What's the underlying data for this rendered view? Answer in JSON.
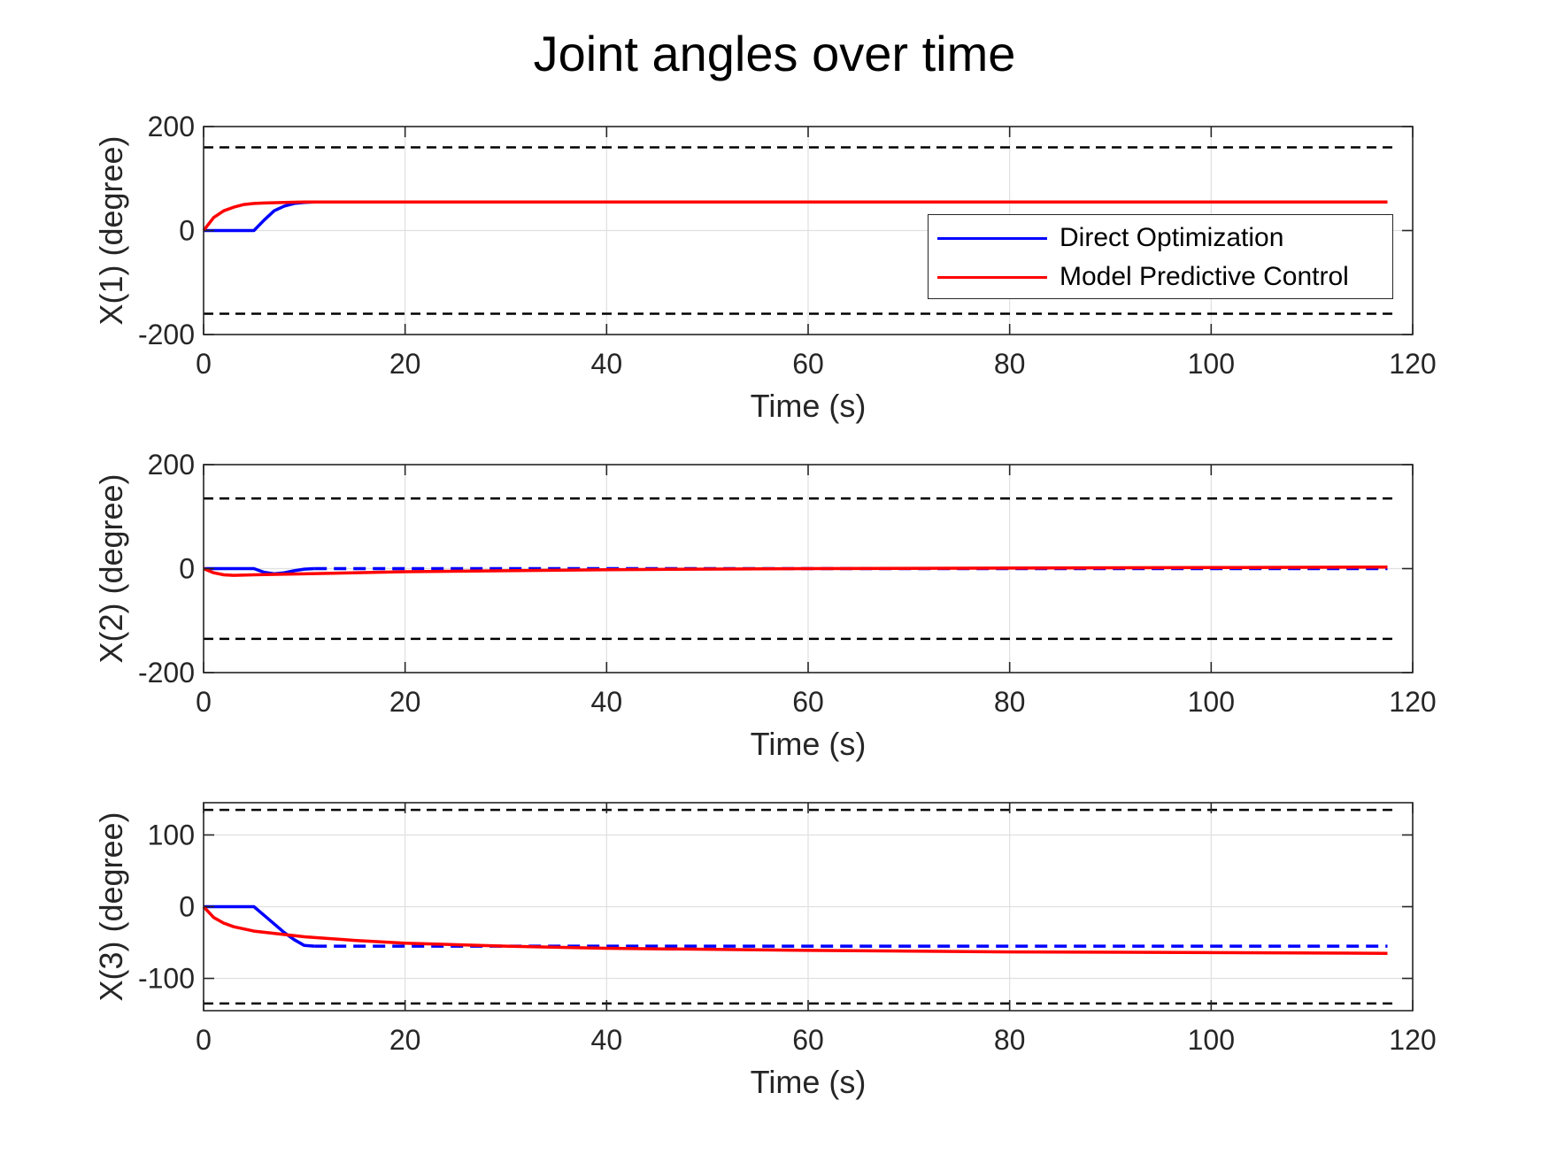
{
  "figure_title": "Joint angles over time",
  "colors": {
    "direct": "#0000ff",
    "mpc": "#ff0000",
    "bound": "#000000",
    "grid": "#e0e0e0",
    "axis": "#262626"
  },
  "legend": [
    {
      "label": "Direct Optimization",
      "color": "#0000ff"
    },
    {
      "label": "Model Predictive Control",
      "color": "#ff0000"
    }
  ],
  "chart_data": [
    {
      "type": "line",
      "title": "",
      "xlabel": "Time (s)",
      "ylabel": "X(1) (degree)",
      "xlim": [
        0,
        120
      ],
      "ylim": [
        -200,
        200
      ],
      "xticks": [
        0,
        20,
        40,
        60,
        80,
        100,
        120
      ],
      "yticks": [
        -200,
        0,
        200
      ],
      "grid": true,
      "legend_position": "center-right",
      "bounds": [
        160,
        -160
      ],
      "series": [
        {
          "name": "Direct Optimization",
          "solid": [
            [
              0,
              0
            ],
            [
              5,
              0
            ],
            [
              6,
              20
            ],
            [
              7,
              38
            ],
            [
              8,
              47
            ],
            [
              9,
              52
            ],
            [
              10,
              54
            ],
            [
              11,
              55
            ]
          ],
          "dashed": []
        },
        {
          "name": "Model Predictive Control",
          "solid": [
            [
              0,
              0
            ],
            [
              1,
              25
            ],
            [
              2,
              38
            ],
            [
              3,
              45
            ],
            [
              4,
              50
            ],
            [
              5,
              52
            ],
            [
              6,
              53
            ],
            [
              8,
              54
            ],
            [
              10,
              55
            ],
            [
              117.5,
              55
            ]
          ]
        }
      ]
    },
    {
      "type": "line",
      "title": "",
      "xlabel": "Time (s)",
      "ylabel": "X(2) (degree)",
      "xlim": [
        0,
        120
      ],
      "ylim": [
        -200,
        200
      ],
      "xticks": [
        0,
        20,
        40,
        60,
        80,
        100,
        120
      ],
      "yticks": [
        -200,
        0,
        200
      ],
      "grid": true,
      "bounds": [
        135,
        -135
      ],
      "series": [
        {
          "name": "Direct Optimization",
          "solid": [
            [
              0,
              0
            ],
            [
              5,
              0
            ],
            [
              6,
              -7
            ],
            [
              7,
              -10
            ],
            [
              8,
              -8
            ],
            [
              9,
              -4
            ],
            [
              10,
              -1
            ],
            [
              11,
              0
            ]
          ],
          "dashed": [
            [
              11,
              0
            ],
            [
              117.5,
              0
            ]
          ]
        },
        {
          "name": "Model Predictive Control",
          "solid": [
            [
              0,
              0
            ],
            [
              1,
              -8
            ],
            [
              2,
              -12
            ],
            [
              3,
              -13
            ],
            [
              5,
              -12
            ],
            [
              10,
              -10
            ],
            [
              20,
              -6
            ],
            [
              30,
              -4
            ],
            [
              40,
              -2
            ],
            [
              60,
              0
            ],
            [
              80,
              1
            ],
            [
              100,
              2
            ],
            [
              117.5,
              3
            ]
          ]
        }
      ]
    },
    {
      "type": "line",
      "title": "",
      "xlabel": "Time (s)",
      "ylabel": "X(3) (degree)",
      "xlim": [
        0,
        120
      ],
      "ylim": [
        -145,
        145
      ],
      "xticks": [
        0,
        20,
        40,
        60,
        80,
        100,
        120
      ],
      "yticks": [
        -100,
        0,
        100
      ],
      "grid": true,
      "bounds": [
        135,
        -135
      ],
      "series": [
        {
          "name": "Direct Optimization",
          "solid": [
            [
              0,
              0
            ],
            [
              5,
              0
            ],
            [
              6,
              -12
            ],
            [
              7,
              -24
            ],
            [
              8,
              -36
            ],
            [
              9,
              -46
            ],
            [
              10,
              -54
            ],
            [
              11,
              -55
            ]
          ],
          "dashed": [
            [
              11,
              -55
            ],
            [
              117.5,
              -55
            ]
          ]
        },
        {
          "name": "Model Predictive Control",
          "solid": [
            [
              0,
              0
            ],
            [
              1,
              -15
            ],
            [
              2,
              -23
            ],
            [
              3,
              -28
            ],
            [
              5,
              -34
            ],
            [
              10,
              -42
            ],
            [
              15,
              -47
            ],
            [
              20,
              -51
            ],
            [
              30,
              -55
            ],
            [
              40,
              -58
            ],
            [
              60,
              -61
            ],
            [
              80,
              -63
            ],
            [
              100,
              -64
            ],
            [
              117.5,
              -65
            ]
          ]
        }
      ]
    }
  ]
}
